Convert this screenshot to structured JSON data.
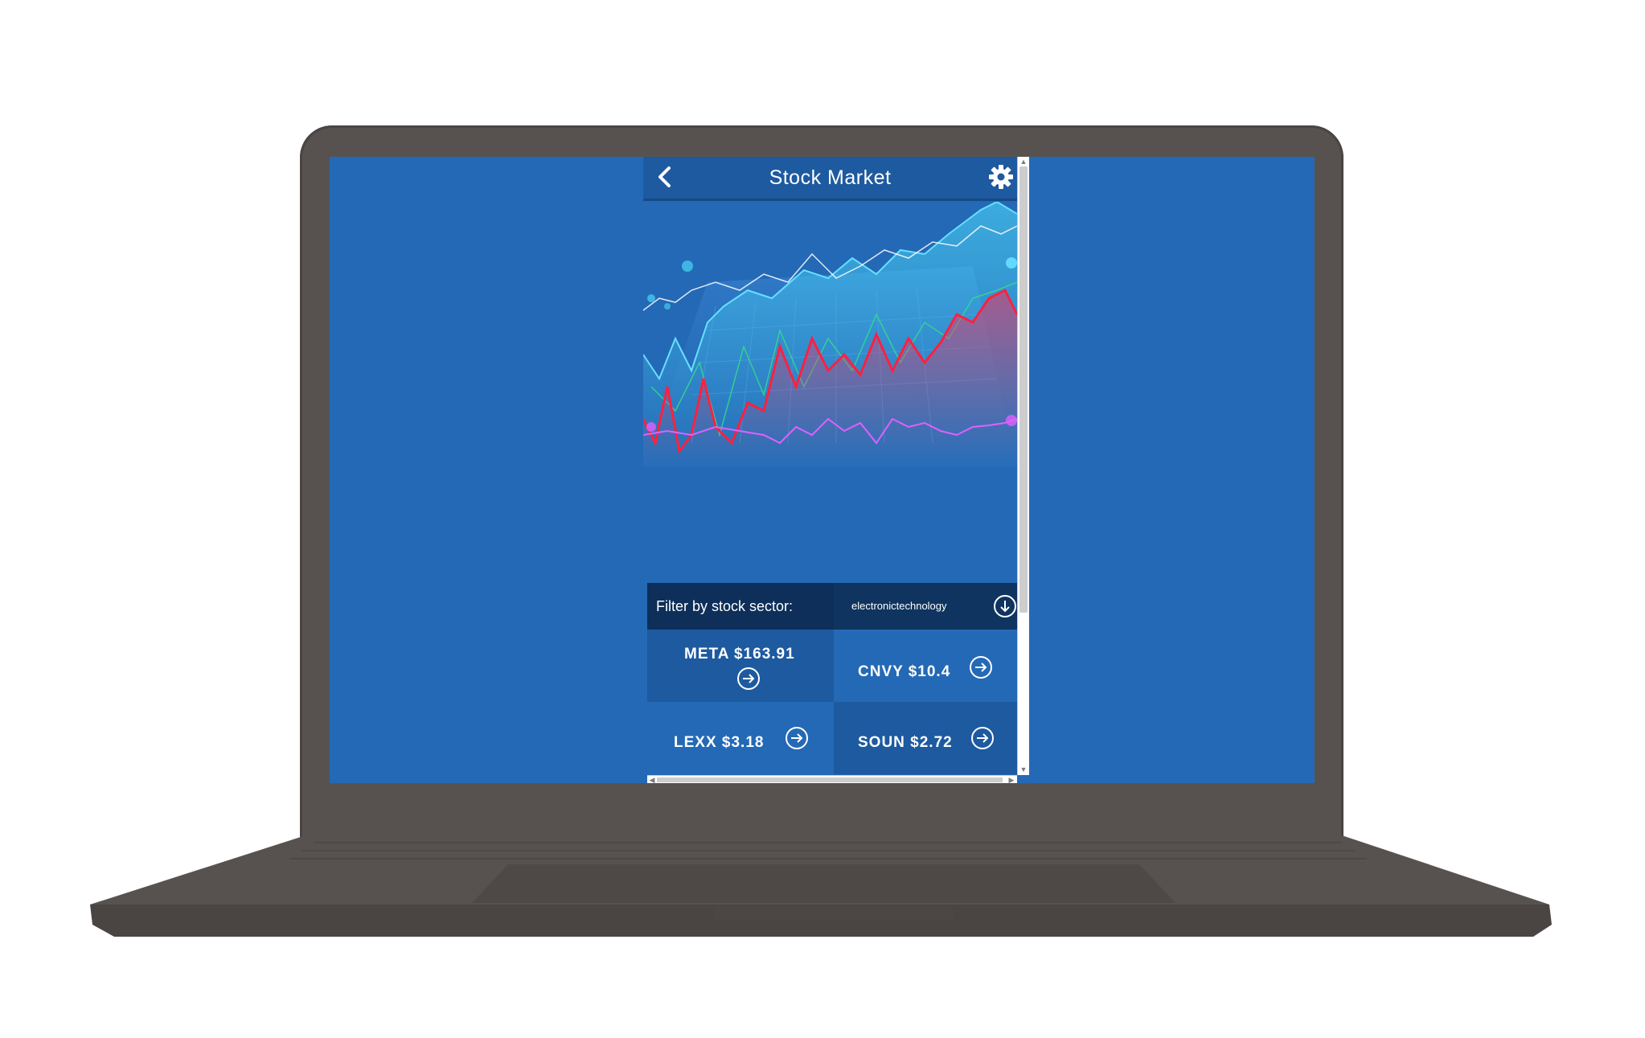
{
  "header": {
    "title": "Stock Market"
  },
  "filter": {
    "label": "Filter by stock sector:",
    "selected": "electronictechnology"
  },
  "stocks": [
    {
      "label": "META $163.91"
    },
    {
      "label": "CNVY $10.4"
    },
    {
      "label": "LEXX $3.18"
    },
    {
      "label": "SOUN $2.72"
    }
  ],
  "icons": {
    "back": "chevron-left-icon",
    "settings": "gear-icon",
    "dropdown": "circle-arrow-down-icon",
    "tile_action": "circle-arrow-right-icon"
  },
  "colors": {
    "screen_bg": "#2469b6",
    "header_bg": "#1d5aa0",
    "filter_bg": "#0d2f59",
    "tile_dark": "#1d5aa0",
    "tile_light": "#2469b6"
  }
}
